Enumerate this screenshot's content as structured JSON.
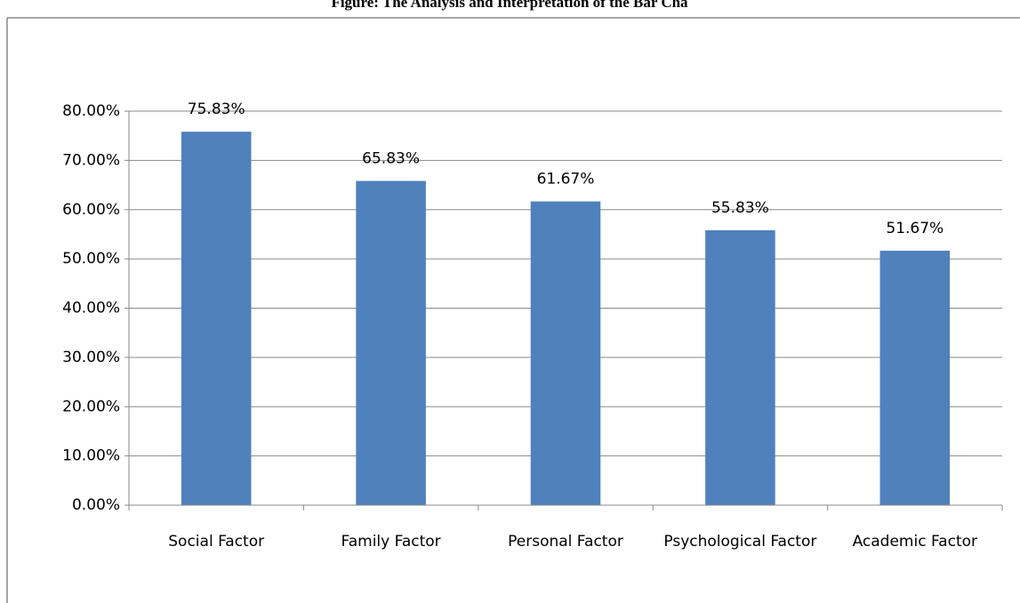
{
  "chart_data": {
    "type": "bar",
    "title": "Figure: The Analysis and Interpretation of the Bar Cha",
    "categories": [
      "Social Factor",
      "Family Factor",
      "Personal Factor",
      "Psychological Factor",
      "Academic Factor"
    ],
    "values": [
      75.83,
      65.83,
      61.67,
      55.83,
      51.67
    ],
    "value_labels": [
      "75.83%",
      "65.83%",
      "61.67%",
      "55.83%",
      "51.67%"
    ],
    "color": "#4f81bd",
    "ylim": [
      0,
      80
    ],
    "yticks": [
      {
        "value": 0,
        "label": "0.00%"
      },
      {
        "value": 10,
        "label": "10.00%"
      },
      {
        "value": 20,
        "label": "20.00%"
      },
      {
        "value": 30,
        "label": "30.00%"
      },
      {
        "value": 40,
        "label": "40.00%"
      },
      {
        "value": 50,
        "label": "50.00%"
      },
      {
        "value": 60,
        "label": "60.00%"
      },
      {
        "value": 70,
        "label": "70.00%"
      },
      {
        "value": 80,
        "label": "80.00%"
      }
    ],
    "grid": true
  }
}
